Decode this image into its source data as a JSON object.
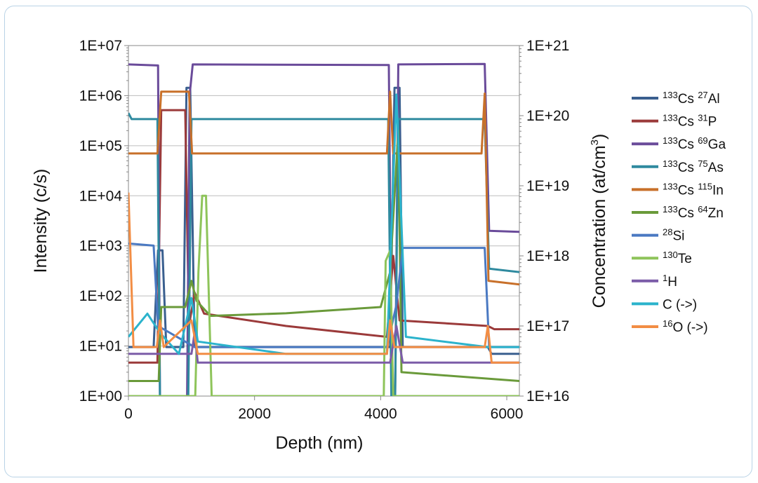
{
  "chart_data": {
    "type": "line",
    "xlabel": "Depth (nm)",
    "ylabel": "Intensity (c/s)",
    "ylabel_right_main": "Concentration (at/cm",
    "ylabel_right_sup": "3",
    "ylabel_right_close": ")",
    "x_ticks": [
      "0",
      "2000",
      "4000",
      "6000"
    ],
    "x_tick_values": [
      0,
      2000,
      4000,
      6000
    ],
    "xlim": [
      0,
      6200
    ],
    "y_scale": "log",
    "ylim": [
      1,
      10000000
    ],
    "y_ticks": [
      "1E+00",
      "1E+01",
      "1E+02",
      "1E+03",
      "1E+04",
      "1E+05",
      "1E+06",
      "1E+07"
    ],
    "y2_scale": "log",
    "y2lim": [
      1e+16,
      1e+21
    ],
    "y2_ticks": [
      "1E+16",
      "1E+17",
      "1E+18",
      "1E+19",
      "1E+20",
      "1E+21"
    ],
    "grid": true,
    "legend_position": "right",
    "series": [
      {
        "id": "al",
        "sup": "133",
        "base": "Cs ",
        "sup2": "27",
        "tail": "Al",
        "color": "#3a5f8f",
        "axis": "right",
        "points": [
          [
            0,
            5e+16
          ],
          [
            400,
            5e+16
          ],
          [
            470,
            1.2e+18
          ],
          [
            540,
            1.2e+18
          ],
          [
            600,
            5e+16
          ],
          [
            870,
            5e+16
          ],
          [
            920,
            2.5e+20
          ],
          [
            980,
            2.5e+20
          ],
          [
            1050,
            5e+16
          ],
          [
            4150,
            5e+16
          ],
          [
            4220,
            2.5e+20
          ],
          [
            4300,
            2.5e+20
          ],
          [
            4350,
            5e+16
          ],
          [
            5700,
            5e+16
          ],
          [
            5760,
            4e+16
          ],
          [
            6200,
            4e+16
          ]
        ]
      },
      {
        "id": "p",
        "sup": "133",
        "base": "Cs ",
        "sup2": "31",
        "tail": "P",
        "color": "#9b3a3a",
        "axis": "right",
        "points": [
          [
            0,
            3e+16
          ],
          [
            460,
            3e+16
          ],
          [
            520,
            1.2e+20
          ],
          [
            900,
            1.2e+20
          ],
          [
            960,
            1e+17
          ],
          [
            1050,
            3e+17
          ],
          [
            1200,
            1.5e+17
          ],
          [
            2500,
            1e+17
          ],
          [
            4100,
            7e+16
          ],
          [
            4200,
            1e+18
          ],
          [
            4300,
            1.2e+17
          ],
          [
            5700,
            1e+17
          ],
          [
            5800,
            9e+16
          ],
          [
            6200,
            9e+16
          ]
        ]
      },
      {
        "id": "ga",
        "sup": "133",
        "base": "Cs ",
        "sup2": "69",
        "tail": "Ga",
        "color": "#6a4b9a",
        "axis": "left",
        "points": [
          [
            0,
            4200000
          ],
          [
            470,
            4000000
          ],
          [
            500,
            1
          ],
          [
            930,
            1
          ],
          [
            970,
            1000000
          ],
          [
            1020,
            4200000
          ],
          [
            4130,
            4100000
          ],
          [
            4180,
            1
          ],
          [
            4230,
            1
          ],
          [
            4280,
            4200000
          ],
          [
            5650,
            4300000
          ],
          [
            5720,
            2000
          ],
          [
            6200,
            1900
          ]
        ]
      },
      {
        "id": "as",
        "sup": "133",
        "base": "Cs ",
        "sup2": "75",
        "tail": "As",
        "color": "#2f8a9f",
        "axis": "left",
        "points": [
          [
            0,
            450000
          ],
          [
            50,
            340000
          ],
          [
            460,
            340000
          ],
          [
            500,
            1
          ],
          [
            950,
            1
          ],
          [
            1000,
            340000
          ],
          [
            4120,
            340000
          ],
          [
            4170,
            1
          ],
          [
            4230,
            1
          ],
          [
            4280,
            340000
          ],
          [
            5650,
            340000
          ],
          [
            5720,
            350
          ],
          [
            6200,
            300
          ]
        ]
      },
      {
        "id": "in",
        "sup": "133",
        "base": "Cs ",
        "sup2": "115",
        "tail": "In",
        "color": "#c8702a",
        "axis": "left",
        "points": [
          [
            0,
            70000
          ],
          [
            460,
            70000
          ],
          [
            520,
            1200000
          ],
          [
            960,
            1200000
          ],
          [
            1010,
            70000
          ],
          [
            4100,
            70000
          ],
          [
            4150,
            1200000
          ],
          [
            4200,
            70000
          ],
          [
            5600,
            70000
          ],
          [
            5650,
            1100000
          ],
          [
            5710,
            200
          ],
          [
            6200,
            170
          ]
        ]
      },
      {
        "id": "zn",
        "sup": "133",
        "base": "Cs ",
        "sup2": "64",
        "tail": "Zn",
        "color": "#6a9a3a",
        "axis": "left",
        "points": [
          [
            0,
            2
          ],
          [
            480,
            2
          ],
          [
            520,
            60
          ],
          [
            900,
            60
          ],
          [
            1000,
            200
          ],
          [
            1080,
            80
          ],
          [
            1300,
            40
          ],
          [
            2500,
            45
          ],
          [
            4000,
            60
          ],
          [
            4150,
            300
          ],
          [
            4280,
            200000
          ],
          [
            4330,
            3
          ],
          [
            6200,
            2
          ]
        ]
      },
      {
        "id": "si",
        "sup": "28",
        "base": "Si",
        "sup2": "",
        "tail": "",
        "color": "#4a79c2",
        "axis": "right",
        "points": [
          [
            0,
            1.5e+18
          ],
          [
            400,
            1.4e+18
          ],
          [
            470,
            1e+17
          ],
          [
            1050,
            5e+16
          ],
          [
            4100,
            5e+16
          ],
          [
            4250,
            2e+17
          ],
          [
            4350,
            1.3e+18
          ],
          [
            5650,
            1.3e+18
          ],
          [
            5720,
            5e+16
          ],
          [
            6200,
            5e+16
          ]
        ]
      },
      {
        "id": "te",
        "sup": "130",
        "base": "Te",
        "sup2": "",
        "tail": "",
        "color": "#8ec45a",
        "axis": "left",
        "points": [
          [
            0,
            1
          ],
          [
            1060,
            1
          ],
          [
            1110,
            300
          ],
          [
            1170,
            10000
          ],
          [
            1230,
            10000
          ],
          [
            1320,
            1
          ],
          [
            4050,
            1
          ],
          [
            4080,
            500
          ],
          [
            4150,
            800
          ],
          [
            4200,
            1
          ],
          [
            6200,
            1
          ]
        ]
      },
      {
        "id": "h",
        "sup": "1",
        "base": "H",
        "sup2": "",
        "tail": "",
        "color": "#7b5ca8",
        "axis": "right",
        "points": [
          [
            0,
            4e+16
          ],
          [
            1000,
            4e+16
          ],
          [
            1050,
            8e+16
          ],
          [
            1100,
            3e+16
          ],
          [
            4150,
            3e+16
          ],
          [
            4250,
            1e+17
          ],
          [
            4350,
            3e+16
          ],
          [
            6200,
            3e+16
          ]
        ]
      },
      {
        "id": "c",
        "sup": "",
        "base": "C (->)",
        "sup2": "",
        "tail": "",
        "color": "#2bb3cc",
        "axis": "right",
        "points": [
          [
            0,
            7e+16
          ],
          [
            300,
            1.5e+17
          ],
          [
            500,
            8e+16
          ],
          [
            800,
            4e+16
          ],
          [
            1000,
            2.5e+17
          ],
          [
            1100,
            6e+16
          ],
          [
            2500,
            4e+16
          ],
          [
            4100,
            4e+16
          ],
          [
            4250,
            2e+20
          ],
          [
            4400,
            7e+16
          ],
          [
            5700,
            5e+16
          ],
          [
            6200,
            5e+16
          ]
        ]
      },
      {
        "id": "o",
        "sup": "16",
        "base": "O (->)",
        "sup2": "",
        "tail": "",
        "color": "#f28d44",
        "axis": "right",
        "points": [
          [
            0,
            8e+18
          ],
          [
            80,
            5e+16
          ],
          [
            450,
            5e+16
          ],
          [
            500,
            1.2e+17
          ],
          [
            560,
            5e+16
          ],
          [
            1000,
            1.2e+17
          ],
          [
            1100,
            4e+16
          ],
          [
            4100,
            4e+16
          ],
          [
            4150,
            1.2e+17
          ],
          [
            4220,
            5e+16
          ],
          [
            5650,
            5e+16
          ],
          [
            5700,
            1e+17
          ],
          [
            5760,
            3e+16
          ],
          [
            6200,
            3e+16
          ]
        ]
      }
    ]
  }
}
